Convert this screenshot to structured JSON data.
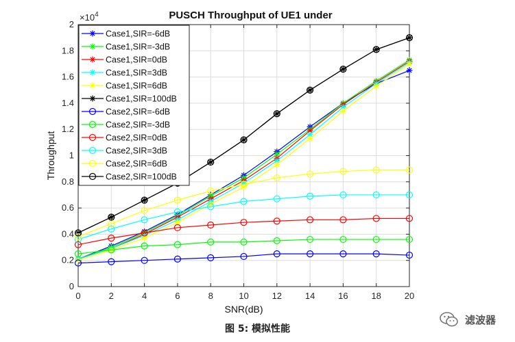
{
  "caption": "图 5: 模拟性能",
  "watermark": {
    "text": "滤波器",
    "icon": "wechat-icon"
  },
  "chart_data": {
    "type": "line",
    "title": "PUSCH Throughput of UE1 under",
    "xlabel": "SNR(dB)",
    "ylabel": "Throughput",
    "y_exponent_label": "×10",
    "y_exponent_power": "4",
    "xlim": [
      0,
      20
    ],
    "ylim": [
      0,
      2
    ],
    "xticks": [
      0,
      2,
      4,
      6,
      8,
      10,
      12,
      14,
      16,
      18,
      20
    ],
    "yticks": [
      0,
      0.2,
      0.4,
      0.6,
      0.8,
      1,
      1.2,
      1.4,
      1.6,
      1.8,
      2
    ],
    "grid": true,
    "legend_position": "top-left",
    "x": [
      0,
      2,
      4,
      6,
      8,
      10,
      12,
      14,
      16,
      18,
      20
    ],
    "series": [
      {
        "name": "Case1,SIR=-6dB",
        "color": "#0000ff",
        "marker": "star",
        "values": [
          0.21,
          0.31,
          0.42,
          0.55,
          0.7,
          0.85,
          1.03,
          1.22,
          1.4,
          1.55,
          1.65
        ]
      },
      {
        "name": "Case1,SIR=-3dB",
        "color": "#00ff00",
        "marker": "star",
        "values": [
          0.21,
          0.3,
          0.41,
          0.54,
          0.69,
          0.83,
          1.01,
          1.2,
          1.4,
          1.57,
          1.73
        ]
      },
      {
        "name": "Case1,SIR=0dB",
        "color": "#ff0000",
        "marker": "star",
        "values": [
          0.21,
          0.29,
          0.4,
          0.53,
          0.67,
          0.81,
          0.98,
          1.19,
          1.39,
          1.56,
          1.72
        ]
      },
      {
        "name": "Case1,SIR=3dB",
        "color": "#00ffff",
        "marker": "star",
        "values": [
          0.21,
          0.29,
          0.39,
          0.51,
          0.65,
          0.79,
          0.96,
          1.16,
          1.37,
          1.55,
          1.71
        ]
      },
      {
        "name": "Case1,SIR=6dB",
        "color": "#ffff00",
        "marker": "star",
        "values": [
          0.2,
          0.28,
          0.37,
          0.49,
          0.63,
          0.76,
          0.93,
          1.13,
          1.34,
          1.53,
          1.7
        ]
      },
      {
        "name": "Case1,SIR=100dB",
        "color": "#000000",
        "marker": "star",
        "values": [
          0.41,
          0.53,
          0.66,
          0.79,
          0.95,
          1.12,
          1.32,
          1.5,
          1.66,
          1.81,
          1.9
        ]
      },
      {
        "name": "Case2,SIR=-6dB",
        "color": "#0000ff",
        "marker": "circle",
        "values": [
          0.18,
          0.19,
          0.2,
          0.21,
          0.22,
          0.23,
          0.25,
          0.25,
          0.25,
          0.25,
          0.24
        ]
      },
      {
        "name": "Case2,SIR=-3dB",
        "color": "#00ff00",
        "marker": "circle",
        "values": [
          0.25,
          0.28,
          0.31,
          0.32,
          0.34,
          0.34,
          0.35,
          0.36,
          0.36,
          0.36,
          0.36
        ]
      },
      {
        "name": "Case2,SIR=0dB",
        "color": "#ff0000",
        "marker": "circle",
        "values": [
          0.32,
          0.37,
          0.41,
          0.45,
          0.47,
          0.49,
          0.5,
          0.51,
          0.51,
          0.52,
          0.52
        ]
      },
      {
        "name": "Case2,SIR=3dB",
        "color": "#00ffff",
        "marker": "circle",
        "values": [
          0.36,
          0.44,
          0.51,
          0.57,
          0.61,
          0.65,
          0.67,
          0.69,
          0.7,
          0.7,
          0.7
        ]
      },
      {
        "name": "Case2,SIR=6dB",
        "color": "#ffff00",
        "marker": "circle",
        "values": [
          0.38,
          0.48,
          0.58,
          0.66,
          0.73,
          0.78,
          0.83,
          0.86,
          0.88,
          0.89,
          0.89
        ]
      },
      {
        "name": "Case2,SIR=100dB",
        "color": "#000000",
        "marker": "circle",
        "values": [
          0.41,
          0.53,
          0.66,
          0.79,
          0.95,
          1.12,
          1.32,
          1.5,
          1.66,
          1.81,
          1.9
        ]
      }
    ]
  }
}
